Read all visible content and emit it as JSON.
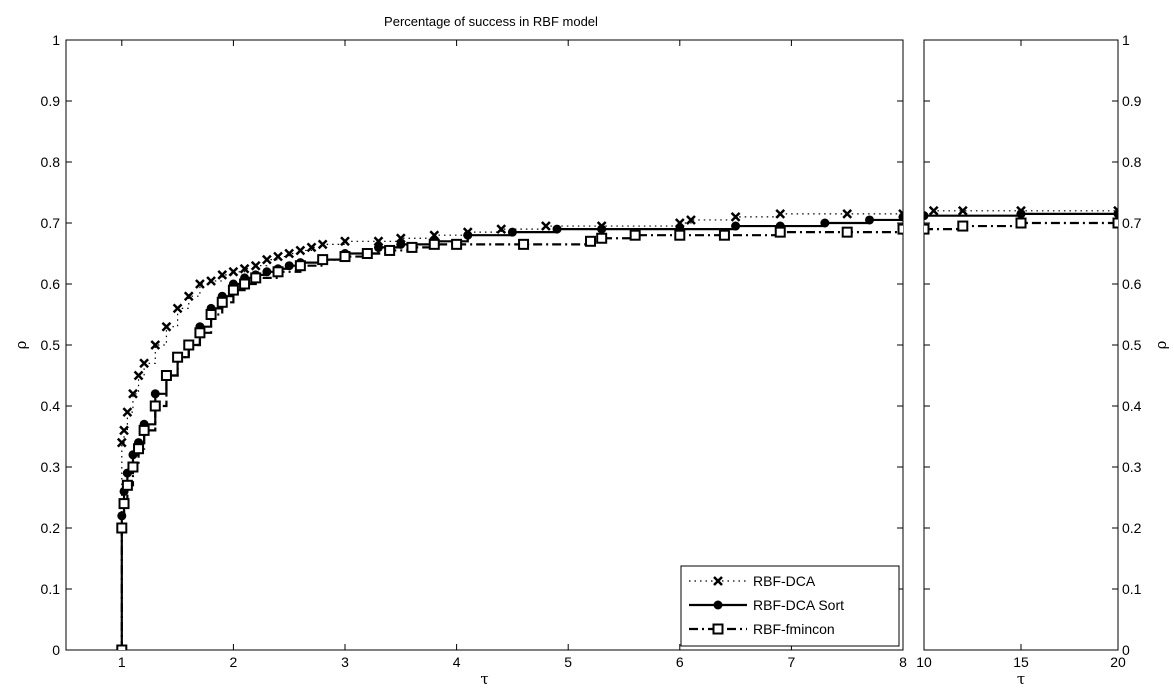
{
  "chart_data": {
    "type": "line",
    "title": "Percentage of success in RBF model",
    "ylabel": "ρ",
    "panels": [
      {
        "name": "main",
        "xlabel": "τ",
        "xlim": [
          0.5,
          8
        ],
        "ylim": [
          0,
          1
        ],
        "xticks": [
          "1",
          "2",
          "3",
          "4",
          "5",
          "6",
          "7",
          "8"
        ],
        "yticks": [
          "0",
          "0.1",
          "0.2",
          "0.3",
          "0.4",
          "0.5",
          "0.6",
          "0.7",
          "0.8",
          "0.9",
          "1"
        ]
      },
      {
        "name": "inset",
        "xlabel": "τ",
        "xlim": [
          10,
          20
        ],
        "ylim": [
          0,
          1
        ],
        "xticks": [
          "10",
          "15",
          "20"
        ],
        "yticks": [
          "0",
          "0.1",
          "0.2",
          "0.3",
          "0.4",
          "0.5",
          "0.6",
          "0.7",
          "0.8",
          "0.9",
          "1"
        ]
      }
    ],
    "legend": {
      "position": "lower-right"
    },
    "series": [
      {
        "name": "RBF-DCA",
        "line_style": "dotted",
        "marker": "x",
        "color": "#000000",
        "x": [
          1.0,
          1.0,
          1.02,
          1.05,
          1.1,
          1.15,
          1.2,
          1.3,
          1.4,
          1.5,
          1.6,
          1.7,
          1.8,
          1.9,
          2.0,
          2.1,
          2.2,
          2.3,
          2.4,
          2.5,
          2.6,
          2.7,
          2.8,
          3.0,
          3.3,
          3.5,
          3.8,
          4.1,
          4.4,
          4.8,
          5.3,
          6.0,
          6.1,
          6.5,
          6.9,
          7.5,
          8.0,
          10.5,
          12,
          15,
          20
        ],
        "y": [
          0.0,
          0.34,
          0.36,
          0.39,
          0.42,
          0.45,
          0.47,
          0.5,
          0.53,
          0.56,
          0.58,
          0.6,
          0.605,
          0.615,
          0.62,
          0.625,
          0.63,
          0.64,
          0.645,
          0.65,
          0.655,
          0.66,
          0.665,
          0.67,
          0.67,
          0.675,
          0.68,
          0.685,
          0.69,
          0.695,
          0.695,
          0.7,
          0.705,
          0.71,
          0.715,
          0.715,
          0.715,
          0.72,
          0.72,
          0.72,
          0.72
        ]
      },
      {
        "name": "RBF-DCA Sort",
        "line_style": "solid",
        "marker": "o",
        "color": "#000000",
        "x": [
          1.0,
          1.0,
          1.02,
          1.05,
          1.1,
          1.15,
          1.2,
          1.3,
          1.4,
          1.5,
          1.6,
          1.7,
          1.8,
          1.9,
          2.0,
          2.1,
          2.2,
          2.3,
          2.4,
          2.5,
          2.6,
          2.8,
          3.0,
          3.3,
          3.5,
          3.8,
          4.1,
          4.5,
          4.9,
          5.3,
          6.0,
          6.5,
          6.9,
          7.3,
          7.7,
          8.0,
          10,
          15,
          20
        ],
        "y": [
          0.0,
          0.22,
          0.26,
          0.29,
          0.32,
          0.34,
          0.37,
          0.42,
          0.45,
          0.48,
          0.5,
          0.53,
          0.56,
          0.58,
          0.6,
          0.61,
          0.615,
          0.62,
          0.625,
          0.63,
          0.635,
          0.64,
          0.65,
          0.66,
          0.665,
          0.67,
          0.68,
          0.685,
          0.69,
          0.69,
          0.69,
          0.695,
          0.695,
          0.7,
          0.705,
          0.71,
          0.712,
          0.715,
          0.715
        ]
      },
      {
        "name": "RBF-fmincon",
        "line_style": "dashdot",
        "marker": "s",
        "color": "#000000",
        "x": [
          1.0,
          1.0,
          1.02,
          1.05,
          1.1,
          1.15,
          1.2,
          1.3,
          1.4,
          1.5,
          1.6,
          1.7,
          1.8,
          1.9,
          2.0,
          2.1,
          2.2,
          2.4,
          2.6,
          2.8,
          3.0,
          3.2,
          3.4,
          3.6,
          3.8,
          4.0,
          4.6,
          5.2,
          5.3,
          5.6,
          6.0,
          6.4,
          6.9,
          7.5,
          8.0,
          10,
          12,
          15,
          20
        ],
        "y": [
          0.0,
          0.2,
          0.24,
          0.27,
          0.3,
          0.33,
          0.36,
          0.4,
          0.45,
          0.48,
          0.5,
          0.52,
          0.55,
          0.57,
          0.59,
          0.6,
          0.61,
          0.62,
          0.63,
          0.64,
          0.645,
          0.65,
          0.655,
          0.66,
          0.665,
          0.665,
          0.665,
          0.67,
          0.675,
          0.68,
          0.68,
          0.68,
          0.685,
          0.685,
          0.69,
          0.69,
          0.695,
          0.7,
          0.7
        ]
      }
    ]
  }
}
